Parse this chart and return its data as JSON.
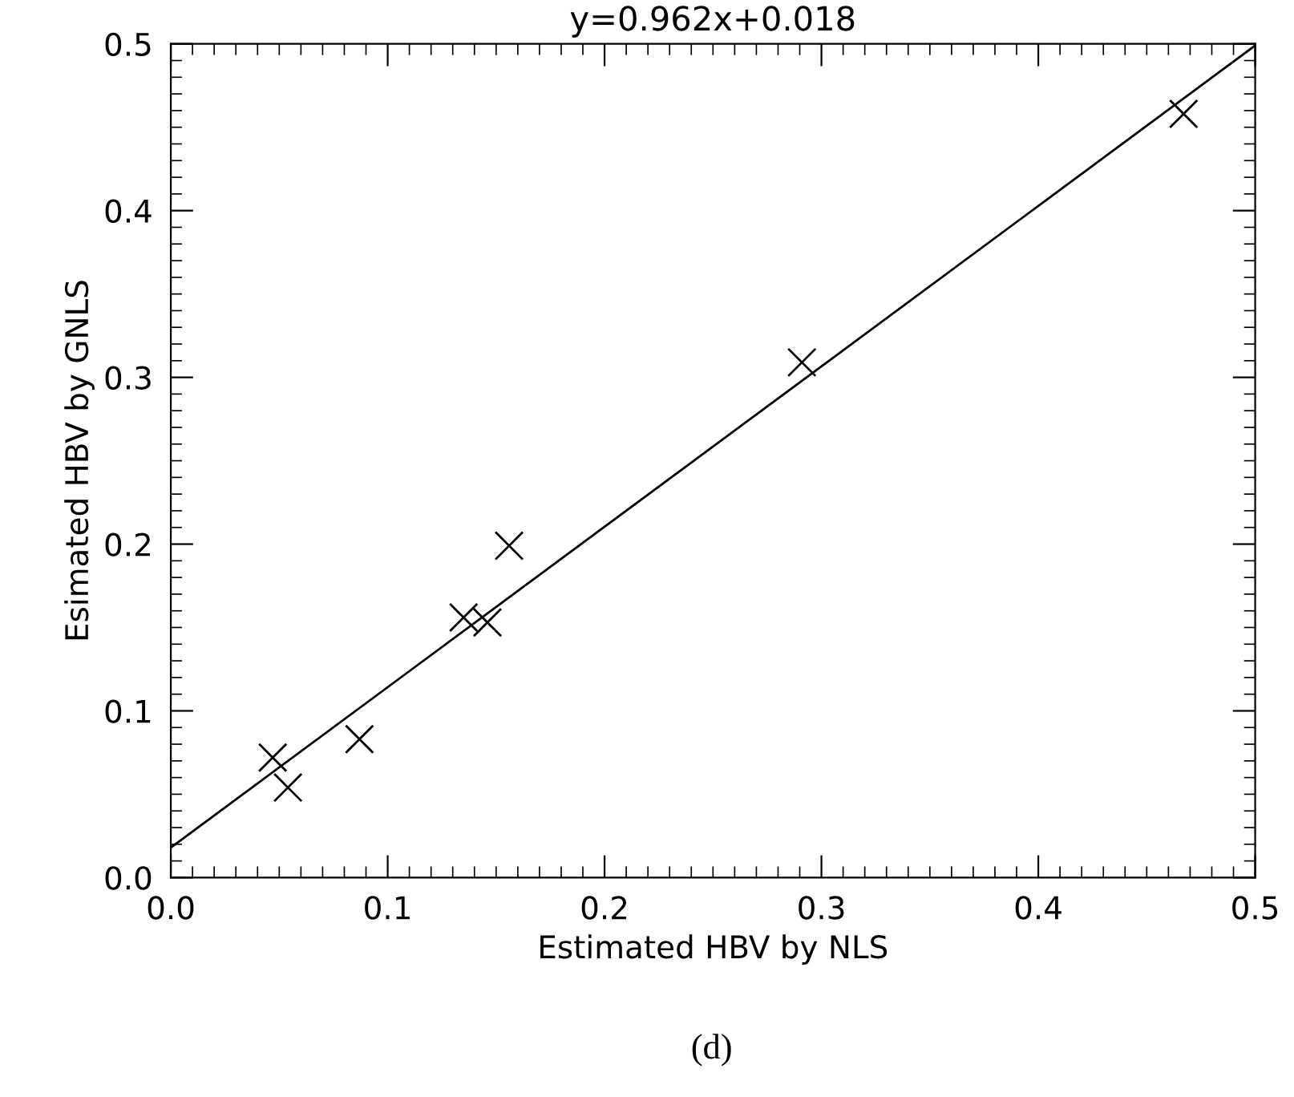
{
  "chart_data": {
    "type": "scatter",
    "title": "y=0.962x+0.018",
    "xlabel": "Estimated HBV by NLS",
    "ylabel": "Esimated HBV by GNLS",
    "annotations": [
      "(d)"
    ],
    "xlim": [
      0.0,
      0.5
    ],
    "ylim": [
      0.0,
      0.5
    ],
    "xticks": [
      {
        "value": 0.0,
        "label": "0.0"
      },
      0.1,
      0.2,
      0.3,
      0.4,
      0.5
    ],
    "yticks": [
      {
        "value": 0.0,
        "label": "0.0"
      },
      0.1,
      0.2,
      0.3,
      0.4,
      0.5
    ],
    "grid": false,
    "legend": false,
    "series": [
      {
        "marker": "cross",
        "color": "#000000",
        "x": [
          0.047,
          0.054,
          0.087,
          0.135,
          0.146,
          0.156,
          0.291,
          0.467
        ],
        "values": [
          0.072,
          0.054,
          0.083,
          0.156,
          0.153,
          0.199,
          0.309,
          0.458
        ]
      },
      {
        "type": "line",
        "color": "#000000",
        "line_style": "solid",
        "x": [
          0.0,
          0.5
        ],
        "values": [
          0.018,
          0.499
        ]
      }
    ]
  }
}
